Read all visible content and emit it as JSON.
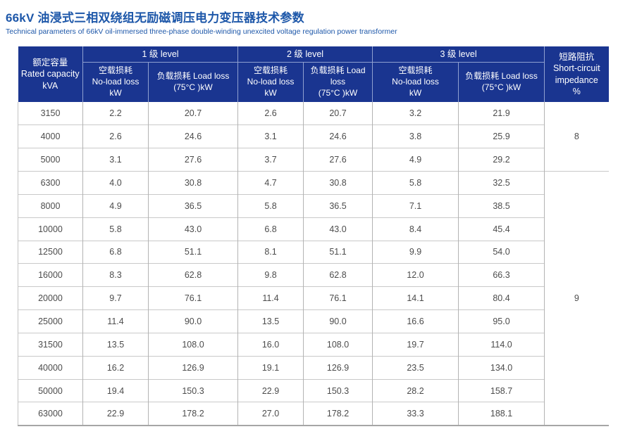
{
  "page": {
    "title_zh": "66kV 油浸式三相双绕组无励磁调压电力变压器技术参数",
    "title_en": "Technical parameters of 66kV oil-immersed three-phase double-winding unexcited voltage regulation power transformer"
  },
  "colors": {
    "title_blue": "#1d57a9",
    "header_bg": "#1a3590",
    "header_border": "#8fa0d0",
    "header_text": "#ffffff",
    "body_text": "#4c4c4c",
    "grid_vertical": "#b3b3b3",
    "grid_horizontal": "#c9c9c9",
    "table_bottom_border": "#a6a6a6"
  },
  "table": {
    "capacity_header": {
      "zh": "额定容量",
      "en": "Rated capacity",
      "unit": "kVA"
    },
    "levels": [
      {
        "label": "1 级 level"
      },
      {
        "label": "2 级 level"
      },
      {
        "label": "3 级 level"
      }
    ],
    "no_load_header": {
      "zh": "空载损耗",
      "en": "No-load loss",
      "unit": "kW"
    },
    "load_header": {
      "line1": "负载损耗 Load loss",
      "line2": "(75°C )kW"
    },
    "impedance_header": {
      "lines": [
        "短路阻抗",
        "Short-circuit",
        "impedance",
        "%"
      ]
    },
    "rows": [
      {
        "capacity": "3150",
        "l1_noload": "2.2",
        "l1_load": "20.7",
        "l2_noload": "2.6",
        "l2_load": "20.7",
        "l3_noload": "3.2",
        "l3_load": "21.9"
      },
      {
        "capacity": "4000",
        "l1_noload": "2.6",
        "l1_load": "24.6",
        "l2_noload": "3.1",
        "l2_load": "24.6",
        "l3_noload": "3.8",
        "l3_load": "25.9"
      },
      {
        "capacity": "5000",
        "l1_noload": "3.1",
        "l1_load": "27.6",
        "l2_noload": "3.7",
        "l2_load": "27.6",
        "l3_noload": "4.9",
        "l3_load": "29.2"
      },
      {
        "capacity": "6300",
        "l1_noload": "4.0",
        "l1_load": "30.8",
        "l2_noload": "4.7",
        "l2_load": "30.8",
        "l3_noload": "5.8",
        "l3_load": "32.5"
      },
      {
        "capacity": "8000",
        "l1_noload": "4.9",
        "l1_load": "36.5",
        "l2_noload": "5.8",
        "l2_load": "36.5",
        "l3_noload": "7.1",
        "l3_load": "38.5"
      },
      {
        "capacity": "10000",
        "l1_noload": "5.8",
        "l1_load": "43.0",
        "l2_noload": "6.8",
        "l2_load": "43.0",
        "l3_noload": "8.4",
        "l3_load": "45.4"
      },
      {
        "capacity": "12500",
        "l1_noload": "6.8",
        "l1_load": "51.1",
        "l2_noload": "8.1",
        "l2_load": "51.1",
        "l3_noload": "9.9",
        "l3_load": "54.0"
      },
      {
        "capacity": "16000",
        "l1_noload": "8.3",
        "l1_load": "62.8",
        "l2_noload": "9.8",
        "l2_load": "62.8",
        "l3_noload": "12.0",
        "l3_load": "66.3"
      },
      {
        "capacity": "20000",
        "l1_noload": "9.7",
        "l1_load": "76.1",
        "l2_noload": "11.4",
        "l2_load": "76.1",
        "l3_noload": "14.1",
        "l3_load": "80.4"
      },
      {
        "capacity": "25000",
        "l1_noload": "11.4",
        "l1_load": "90.0",
        "l2_noload": "13.5",
        "l2_load": "90.0",
        "l3_noload": "16.6",
        "l3_load": "95.0"
      },
      {
        "capacity": "31500",
        "l1_noload": "13.5",
        "l1_load": "108.0",
        "l2_noload": "16.0",
        "l2_load": "108.0",
        "l3_noload": "19.7",
        "l3_load": "114.0"
      },
      {
        "capacity": "40000",
        "l1_noload": "16.2",
        "l1_load": "126.9",
        "l2_noload": "19.1",
        "l2_load": "126.9",
        "l3_noload": "23.5",
        "l3_load": "134.0"
      },
      {
        "capacity": "50000",
        "l1_noload": "19.4",
        "l1_load": "150.3",
        "l2_noload": "22.9",
        "l2_load": "150.3",
        "l3_noload": "28.2",
        "l3_load": "158.7"
      },
      {
        "capacity": "63000",
        "l1_noload": "22.9",
        "l1_load": "178.2",
        "l2_noload": "27.0",
        "l2_load": "178.2",
        "l3_noload": "33.3",
        "l3_load": "188.1"
      }
    ],
    "impedance_groups": [
      {
        "value": "8",
        "row_span": 3
      },
      {
        "value": "9",
        "row_span": 11
      }
    ]
  }
}
